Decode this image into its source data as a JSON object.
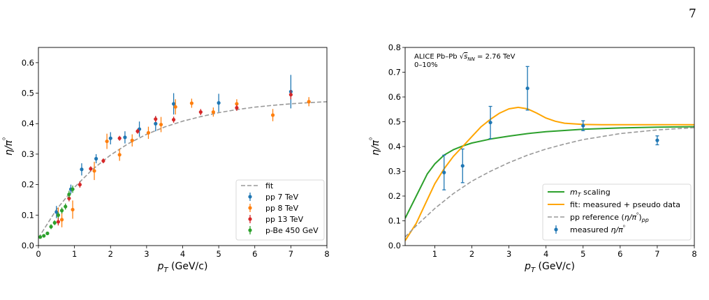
{
  "page": {
    "number": "7"
  },
  "chart_data": [
    {
      "type": "scatter",
      "xlabel": "p_T (GeV/c)",
      "ylabel": "η/π⁰",
      "xlim": [
        0,
        8
      ],
      "ylim": [
        0,
        0.65
      ],
      "xticks": [
        0,
        1,
        2,
        3,
        4,
        5,
        6,
        7,
        8
      ],
      "yticks": [
        0.0,
        0.1,
        0.2,
        0.3,
        0.4,
        0.5,
        0.6
      ],
      "legend_position": "bottom-right",
      "lines": [
        {
          "name": "fit",
          "color": "#999999",
          "dash": true,
          "x": [
            0,
            0.5,
            1,
            1.5,
            2,
            2.5,
            3,
            3.5,
            4,
            4.5,
            5,
            5.5,
            6,
            6.5,
            7,
            7.5,
            8
          ],
          "y": [
            0.025,
            0.118,
            0.191,
            0.25,
            0.297,
            0.335,
            0.365,
            0.389,
            0.408,
            0.423,
            0.436,
            0.446,
            0.454,
            0.46,
            0.465,
            0.469,
            0.472
          ]
        }
      ],
      "series": [
        {
          "name": "pp 7 TeV",
          "color": "#1f77b4",
          "x": [
            0.5,
            0.9,
            1.2,
            1.6,
            2.0,
            2.4,
            2.8,
            3.25,
            3.75,
            5.0,
            7.0
          ],
          "y": [
            0.11,
            0.185,
            0.25,
            0.285,
            0.352,
            0.355,
            0.382,
            0.4,
            0.465,
            0.468,
            0.505
          ],
          "err": [
            0.02,
            0.015,
            0.02,
            0.015,
            0.02,
            0.02,
            0.025,
            0.025,
            0.035,
            0.03,
            0.055
          ]
        },
        {
          "name": "pp 8 TeV",
          "color": "#ff7f0e",
          "x": [
            0.55,
            0.65,
            0.95,
            1.55,
            1.9,
            2.25,
            2.6,
            3.05,
            3.4,
            3.8,
            4.25,
            4.85,
            5.5,
            6.5,
            7.5
          ],
          "y": [
            0.1,
            0.085,
            0.118,
            0.245,
            0.342,
            0.298,
            0.345,
            0.37,
            0.397,
            0.455,
            0.467,
            0.438,
            0.465,
            0.428,
            0.472
          ],
          "err": [
            0.025,
            0.025,
            0.03,
            0.03,
            0.025,
            0.02,
            0.02,
            0.02,
            0.025,
            0.025,
            0.015,
            0.015,
            0.015,
            0.02,
            0.015
          ]
        },
        {
          "name": "pp 13 TeV",
          "color": "#d62728",
          "x": [
            0.55,
            0.85,
            1.15,
            1.45,
            1.8,
            2.25,
            2.75,
            3.25,
            3.75,
            4.5,
            5.5,
            7.0
          ],
          "y": [
            0.078,
            0.155,
            0.2,
            0.252,
            0.278,
            0.352,
            0.375,
            0.415,
            0.413,
            0.438,
            0.452,
            0.495
          ],
          "err": [
            0.012,
            0.01,
            0.01,
            0.008,
            0.008,
            0.008,
            0.008,
            0.01,
            0.01,
            0.01,
            0.01,
            0.015
          ]
        },
        {
          "name": "p-Be 450 GeV",
          "color": "#2ca02c",
          "x": [
            0.05,
            0.15,
            0.25,
            0.35,
            0.45,
            0.55,
            0.65,
            0.75,
            0.85,
            0.95
          ],
          "y": [
            0.028,
            0.032,
            0.04,
            0.062,
            0.075,
            0.1,
            0.115,
            0.128,
            0.168,
            0.185
          ],
          "err": [
            0.005,
            0.005,
            0.005,
            0.008,
            0.008,
            0.01,
            0.01,
            0.01,
            0.012,
            0.012
          ]
        }
      ]
    },
    {
      "type": "line",
      "xlabel": "p_T (GeV/c)",
      "ylabel": "η/π⁰",
      "xlim": [
        0.2,
        8
      ],
      "ylim": [
        0,
        0.8
      ],
      "xticks": [
        1,
        2,
        3,
        4,
        5,
        6,
        7,
        8
      ],
      "yticks": [
        0.0,
        0.1,
        0.2,
        0.3,
        0.4,
        0.5,
        0.6,
        0.7,
        0.8
      ],
      "annotation": [
        "ALICE Pb–Pb √s_NN = 2.76 TeV",
        "0–10%"
      ],
      "legend_position": "bottom-right",
      "lines": [
        {
          "name": "m_T scaling",
          "color": "#2ca02c",
          "dash": false,
          "x": [
            0.2,
            0.5,
            0.8,
            1.0,
            1.25,
            1.5,
            1.75,
            2.0,
            2.5,
            3.0,
            3.5,
            4.0,
            5.0,
            6.0,
            7.0,
            8.0
          ],
          "y": [
            0.11,
            0.2,
            0.29,
            0.33,
            0.365,
            0.387,
            0.402,
            0.414,
            0.43,
            0.442,
            0.452,
            0.46,
            0.47,
            0.475,
            0.478,
            0.48
          ]
        },
        {
          "name": "fit: measured + pseudo data",
          "color": "#ffa500",
          "dash": false,
          "x": [
            0.2,
            0.5,
            0.75,
            1.0,
            1.25,
            1.5,
            1.75,
            2.0,
            2.25,
            2.5,
            2.75,
            3.0,
            3.25,
            3.5,
            3.75,
            4.0,
            4.25,
            4.5,
            5.0,
            5.5,
            6.0,
            7.0,
            8.0
          ],
          "y": [
            0.02,
            0.09,
            0.17,
            0.25,
            0.31,
            0.36,
            0.4,
            0.44,
            0.48,
            0.51,
            0.535,
            0.552,
            0.558,
            0.552,
            0.535,
            0.515,
            0.502,
            0.494,
            0.489,
            0.488,
            0.488,
            0.488,
            0.488
          ]
        },
        {
          "name": "pp reference (η/π⁰)_pp",
          "color": "#999999",
          "dash": true,
          "x": [
            0.2,
            0.5,
            1.0,
            1.5,
            2.0,
            2.5,
            3.0,
            3.5,
            4.0,
            4.5,
            5.0,
            6.0,
            7.0,
            8.0
          ],
          "y": [
            0.035,
            0.08,
            0.15,
            0.21,
            0.26,
            0.3,
            0.335,
            0.365,
            0.39,
            0.41,
            0.428,
            0.452,
            0.467,
            0.476
          ]
        }
      ],
      "series": [
        {
          "name": "measured η/π⁰",
          "color": "#1f77b4",
          "x": [
            1.25,
            1.75,
            2.5,
            3.5,
            5.0,
            7.0
          ],
          "y": [
            0.295,
            0.322,
            0.497,
            0.635,
            0.484,
            0.425
          ],
          "err": [
            0.07,
            0.068,
            0.065,
            0.088,
            0.02,
            0.018
          ]
        }
      ]
    }
  ]
}
